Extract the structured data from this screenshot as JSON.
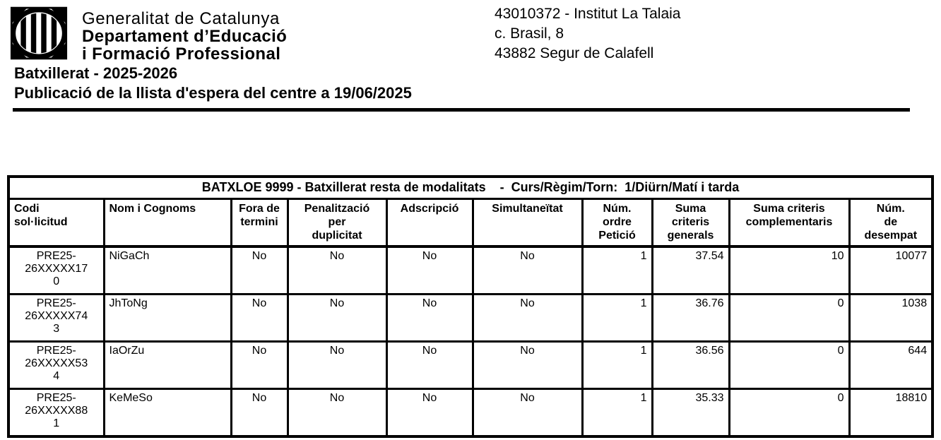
{
  "brand": {
    "logo": "generalitat-senyera-coat-of-arms",
    "line1": "Generalitat de Catalunya",
    "line2": "Departament d’Educació",
    "line3": "i Formació Professional"
  },
  "center": {
    "line1": "43010372 - Institut La Talaia",
    "line2": "c. Brasil, 8",
    "line3": "43882 Segur de Calafell"
  },
  "titles": {
    "line1": "Batxillerat - 2025-2026",
    "line2": "Publicació de la llista d'espera del centre a 19/06/2025"
  },
  "table": {
    "group_header": "BATXLOE 9999 - Batxillerat resta de modalitats    -  Curs/Règim/Torn:  1/Diürn/Matí i tarda",
    "columns": [
      "Codi\nsol·licitud",
      "Nom i Cognoms",
      "Fora de\ntermini",
      "Penalització\nper\nduplicitat",
      "Adscripció",
      "Simultaneïtat",
      "Núm.\nordre\nPetició",
      "Suma\ncriteris\ngenerals",
      "Suma criteris\ncomplementaris",
      "Núm.\nde\ndesempat"
    ],
    "rows": [
      {
        "codi": "PRE25-26XXXXX170",
        "nom": "NiGaCh",
        "fora_de_termini": "No",
        "penalitzacio_per_duplicitat": "No",
        "adscripcio": "No",
        "simultaneitat": "No",
        "num_ordre_peticio": "1",
        "suma_criteris_generals": "37.54",
        "suma_criteris_complementaris": "10",
        "num_desempat": "10077"
      },
      {
        "codi": "PRE25-26XXXXX743",
        "nom": "JhToNg",
        "fora_de_termini": "No",
        "penalitzacio_per_duplicitat": "No",
        "adscripcio": "No",
        "simultaneitat": "No",
        "num_ordre_peticio": "1",
        "suma_criteris_generals": "36.76",
        "suma_criteris_complementaris": "0",
        "num_desempat": "1038"
      },
      {
        "codi": "PRE25-26XXXXX534",
        "nom": "IaOrZu",
        "fora_de_termini": "No",
        "penalitzacio_per_duplicitat": "No",
        "adscripcio": "No",
        "simultaneitat": "No",
        "num_ordre_peticio": "1",
        "suma_criteris_generals": "36.56",
        "suma_criteris_complementaris": "0",
        "num_desempat": "644"
      },
      {
        "codi": "PRE25-26XXXXX881",
        "nom": "KeMeSo",
        "fora_de_termini": "No",
        "penalitzacio_per_duplicitat": "No",
        "adscripcio": "No",
        "simultaneitat": "No",
        "num_ordre_peticio": "1",
        "suma_criteris_generals": "35.33",
        "suma_criteris_complementaris": "0",
        "num_desempat": "18810"
      }
    ]
  },
  "colors": {
    "text": "#000000",
    "border": "#000000",
    "background": "#ffffff"
  }
}
